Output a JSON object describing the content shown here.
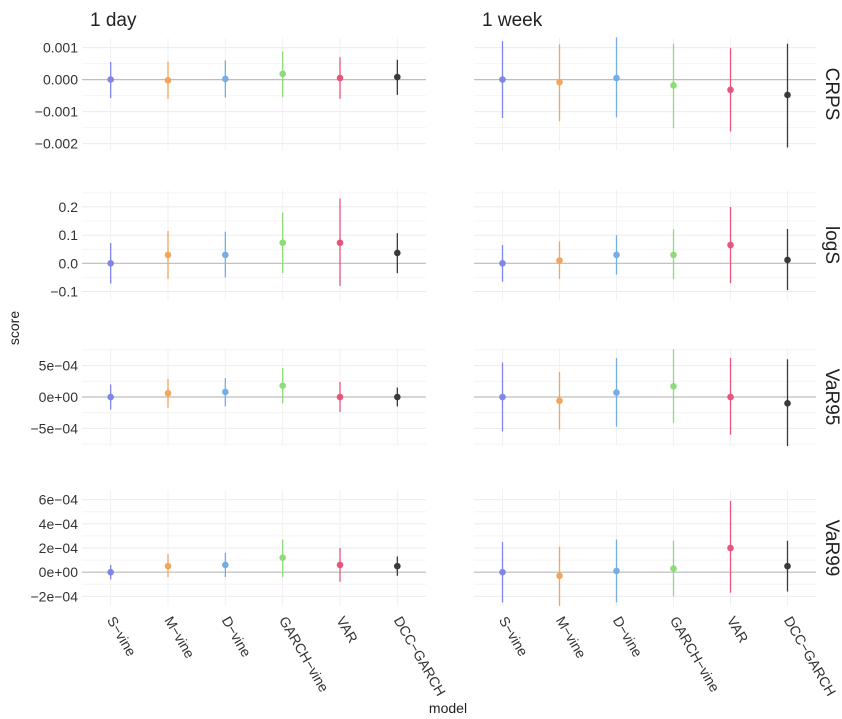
{
  "chart_data": {
    "type": "errorbar",
    "xlabel": "model",
    "ylabel": "score",
    "models": [
      "S−vine",
      "M−vine",
      "D−vine",
      "GARCH−vine",
      "VAR",
      "DCC−GARCH"
    ],
    "colors": {
      "S−vine": "#7f86ea",
      "M−vine": "#f5a45c",
      "D−vine": "#74aee5",
      "GARCH−vine": "#8ddc7a",
      "VAR": "#e9547b",
      "DCC−GARCH": "#3a3a3a"
    },
    "columns": [
      "1 day",
      "1 week"
    ],
    "grid": true,
    "rows": [
      {
        "label": "CRPS",
        "ylim": [
          -0.0022,
          0.0013
        ],
        "ticks": [
          {
            "v": 0.001,
            "t": "0.001"
          },
          {
            "v": 0.0,
            "t": "0.000"
          },
          {
            "v": -0.001,
            "t": "−0.001"
          },
          {
            "v": -0.002,
            "t": "−0.002"
          }
        ],
        "panels": [
          {
            "column": "1 day",
            "points": [
              {
                "model": "S−vine",
                "y": 0.0,
                "lo": -0.00058,
                "hi": 0.00055
              },
              {
                "model": "M−vine",
                "y": -2e-05,
                "lo": -0.0006,
                "hi": 0.00056
              },
              {
                "model": "D−vine",
                "y": 2e-05,
                "lo": -0.00056,
                "hi": 0.0006
              },
              {
                "model": "GARCH−vine",
                "y": 0.00018,
                "lo": -0.00055,
                "hi": 0.00088
              },
              {
                "model": "VAR",
                "y": 5e-05,
                "lo": -0.0006,
                "hi": 0.0007
              },
              {
                "model": "DCC−GARCH",
                "y": 8e-05,
                "lo": -0.00048,
                "hi": 0.00062
              }
            ]
          },
          {
            "column": "1 week",
            "points": [
              {
                "model": "S−vine",
                "y": 0.0,
                "lo": -0.0012,
                "hi": 0.0012
              },
              {
                "model": "M−vine",
                "y": -8e-05,
                "lo": -0.0013,
                "hi": 0.0011
              },
              {
                "model": "D−vine",
                "y": 5e-05,
                "lo": -0.00118,
                "hi": 0.00132
              },
              {
                "model": "GARCH−vine",
                "y": -0.00018,
                "lo": -0.00152,
                "hi": 0.00112
              },
              {
                "model": "VAR",
                "y": -0.00032,
                "lo": -0.00162,
                "hi": 0.00098
              },
              {
                "model": "DCC−GARCH",
                "y": -0.00048,
                "lo": -0.00212,
                "hi": 0.00112
              }
            ]
          }
        ]
      },
      {
        "label": "logS",
        "ylim": [
          -0.13,
          0.26
        ],
        "ticks": [
          {
            "v": 0.2,
            "t": "0.2"
          },
          {
            "v": 0.1,
            "t": "0.1"
          },
          {
            "v": 0.0,
            "t": "0.0"
          },
          {
            "v": -0.1,
            "t": "−0.1"
          }
        ],
        "panels": [
          {
            "column": "1 day",
            "points": [
              {
                "model": "S−vine",
                "y": 0.0,
                "lo": -0.072,
                "hi": 0.072
              },
              {
                "model": "M−vine",
                "y": 0.03,
                "lo": -0.055,
                "hi": 0.115
              },
              {
                "model": "D−vine",
                "y": 0.03,
                "lo": -0.05,
                "hi": 0.112
              },
              {
                "model": "GARCH−vine",
                "y": 0.073,
                "lo": -0.035,
                "hi": 0.18
              },
              {
                "model": "VAR",
                "y": 0.073,
                "lo": -0.08,
                "hi": 0.23
              },
              {
                "model": "DCC−GARCH",
                "y": 0.037,
                "lo": -0.035,
                "hi": 0.107
              }
            ]
          },
          {
            "column": "1 week",
            "points": [
              {
                "model": "S−vine",
                "y": 0.0,
                "lo": -0.065,
                "hi": 0.065
              },
              {
                "model": "M−vine",
                "y": 0.01,
                "lo": -0.055,
                "hi": 0.078
              },
              {
                "model": "D−vine",
                "y": 0.03,
                "lo": -0.04,
                "hi": 0.1
              },
              {
                "model": "GARCH−vine",
                "y": 0.03,
                "lo": -0.055,
                "hi": 0.12
              },
              {
                "model": "VAR",
                "y": 0.065,
                "lo": -0.07,
                "hi": 0.2
              },
              {
                "model": "DCC−GARCH",
                "y": 0.012,
                "lo": -0.095,
                "hi": 0.122
              }
            ]
          }
        ]
      },
      {
        "label": "VaR95",
        "ylim": [
          -0.00078,
          0.00078
        ],
        "ticks": [
          {
            "v": 0.0005,
            "t": "5e−04"
          },
          {
            "v": 0.0,
            "t": "0e+00"
          },
          {
            "v": -0.0005,
            "t": "−5e−04"
          }
        ],
        "panels": [
          {
            "column": "1 day",
            "points": [
              {
                "model": "S−vine",
                "y": 0.0,
                "lo": -0.0002,
                "hi": 0.0002
              },
              {
                "model": "M−vine",
                "y": 6e-05,
                "lo": -0.00017,
                "hi": 0.00029
              },
              {
                "model": "D−vine",
                "y": 8e-05,
                "lo": -0.00015,
                "hi": 0.0003
              },
              {
                "model": "GARCH−vine",
                "y": 0.00018,
                "lo": -0.0001,
                "hi": 0.00046
              },
              {
                "model": "VAR",
                "y": 0.0,
                "lo": -0.00024,
                "hi": 0.00024
              },
              {
                "model": "DCC−GARCH",
                "y": 0.0,
                "lo": -0.00015,
                "hi": 0.00015
              }
            ]
          },
          {
            "column": "1 week",
            "points": [
              {
                "model": "S−vine",
                "y": 0.0,
                "lo": -0.00055,
                "hi": 0.00055
              },
              {
                "model": "M−vine",
                "y": -6e-05,
                "lo": -0.00052,
                "hi": 0.0004
              },
              {
                "model": "D−vine",
                "y": 7e-05,
                "lo": -0.00047,
                "hi": 0.00062
              },
              {
                "model": "GARCH−vine",
                "y": 0.00017,
                "lo": -0.00041,
                "hi": 0.00076
              },
              {
                "model": "VAR",
                "y": 0.0,
                "lo": -0.0006,
                "hi": 0.00062
              },
              {
                "model": "DCC−GARCH",
                "y": -0.0001,
                "lo": -0.00078,
                "hi": 0.0006
              }
            ]
          }
        ]
      },
      {
        "label": "VaR99",
        "ylim": [
          -0.00028,
          0.00068
        ],
        "ticks": [
          {
            "v": 0.0006,
            "t": "6e−04"
          },
          {
            "v": 0.0004,
            "t": "4e−04"
          },
          {
            "v": 0.0002,
            "t": "2e−04"
          },
          {
            "v": 0.0,
            "t": "0e+00"
          },
          {
            "v": -0.0002,
            "t": "−2e−04"
          }
        ],
        "panels": [
          {
            "column": "1 day",
            "points": [
              {
                "model": "S−vine",
                "y": 0.0,
                "lo": -6e-05,
                "hi": 6e-05
              },
              {
                "model": "M−vine",
                "y": 5e-05,
                "lo": -4e-05,
                "hi": 0.00015
              },
              {
                "model": "D−vine",
                "y": 6e-05,
                "lo": -4e-05,
                "hi": 0.00016
              },
              {
                "model": "GARCH−vine",
                "y": 0.00012,
                "lo": -4e-05,
                "hi": 0.00027
              },
              {
                "model": "VAR",
                "y": 6e-05,
                "lo": -8e-05,
                "hi": 0.0002
              },
              {
                "model": "DCC−GARCH",
                "y": 5e-05,
                "lo": -3e-05,
                "hi": 0.00013
              }
            ]
          },
          {
            "column": "1 week",
            "points": [
              {
                "model": "S−vine",
                "y": 0.0,
                "lo": -0.00025,
                "hi": 0.00025
              },
              {
                "model": "M−vine",
                "y": -3e-05,
                "lo": -0.00028,
                "hi": 0.00021
              },
              {
                "model": "D−vine",
                "y": 1e-05,
                "lo": -0.00025,
                "hi": 0.00027
              },
              {
                "model": "GARCH−vine",
                "y": 3e-05,
                "lo": -0.0002,
                "hi": 0.00026
              },
              {
                "model": "VAR",
                "y": 0.0002,
                "lo": -0.00017,
                "hi": 0.00059
              },
              {
                "model": "DCC−GARCH",
                "y": 5e-05,
                "lo": -0.00016,
                "hi": 0.00026
              }
            ]
          }
        ]
      }
    ]
  }
}
